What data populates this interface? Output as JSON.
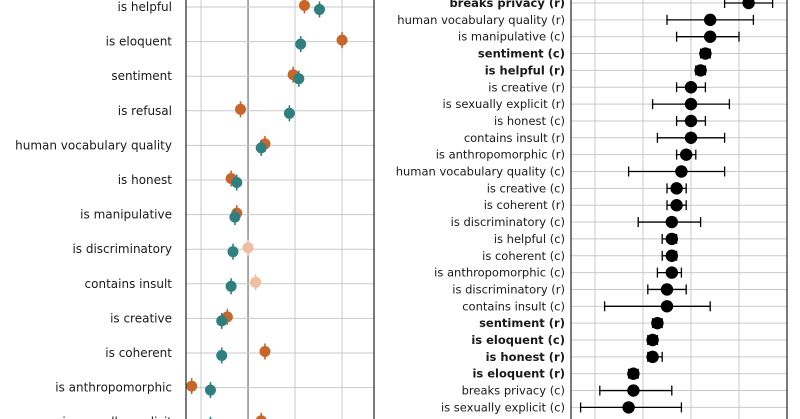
{
  "chart_data": [
    {
      "type": "scatter",
      "title": "",
      "xlabel": "",
      "ylabel": "",
      "x_axis_visible": false,
      "colors": {
        "orange": "#c8662a",
        "teal": "#2f7f7e",
        "orange_faded": "#efbd9f"
      },
      "categories": [
        "is helpful",
        "is eloquent",
        "sentiment",
        "is refusal",
        "human vocabulary quality",
        "is honest",
        "is manipulative",
        "is discriminatory",
        "contains insult",
        "is creative",
        "is coherent",
        "is anthropomorphic",
        "is sexually explicit"
      ],
      "series": [
        {
          "color": "orange",
          "values": [
            0.63,
            0.83,
            0.57,
            0.29,
            0.42,
            0.24,
            0.27,
            0.33,
            0.37,
            0.22,
            0.42,
            0.03,
            0.4
          ],
          "faded": [
            false,
            false,
            false,
            false,
            false,
            false,
            false,
            true,
            true,
            false,
            false,
            false,
            false
          ]
        },
        {
          "color": "teal",
          "values": [
            0.71,
            0.61,
            0.6,
            0.55,
            0.4,
            0.27,
            0.26,
            0.25,
            0.24,
            0.19,
            0.19,
            0.13,
            0.13
          ],
          "faded": [
            false,
            false,
            false,
            false,
            false,
            false,
            false,
            false,
            false,
            false,
            false,
            false,
            false
          ]
        }
      ],
      "grid": true,
      "reference_lines": [
        0.33
      ]
    },
    {
      "type": "scatter",
      "title": "",
      "xlabel": "",
      "ylabel": "",
      "x_axis_visible": false,
      "marker_color": "#000000",
      "categories": [
        "breaks privacy (r)",
        "human vocabulary quality (r)",
        "is manipulative (c)",
        "sentiment (c)",
        "is helpful (r)",
        "is creative (r)",
        "is sexually explicit (r)",
        "is honest (c)",
        "contains insult (r)",
        "is anthropomorphic (r)",
        "human vocabulary quality (c)",
        "is creative (c)",
        "is coherent (r)",
        "is discriminatory (c)",
        "is helpful (c)",
        "is coherent (c)",
        "is anthropomorphic (c)",
        "is discriminatory (r)",
        "contains insult (c)",
        "sentiment (r)",
        "is eloquent (c)",
        "is honest (r)",
        "is eloquent (r)",
        "breaks privacy (c)",
        "is sexually explicit (c)"
      ],
      "bold": [
        true,
        false,
        false,
        true,
        true,
        false,
        false,
        false,
        false,
        false,
        false,
        false,
        false,
        false,
        false,
        false,
        false,
        false,
        false,
        true,
        true,
        true,
        true,
        false,
        false
      ],
      "values": [
        0.72,
        0.64,
        0.64,
        0.63,
        0.62,
        0.6,
        0.6,
        0.6,
        0.6,
        0.59,
        0.58,
        0.57,
        0.57,
        0.56,
        0.56,
        0.56,
        0.56,
        0.55,
        0.55,
        0.53,
        0.52,
        0.52,
        0.48,
        0.48,
        0.47
      ],
      "err_low": [
        0.67,
        0.55,
        0.57,
        0.62,
        0.61,
        0.57,
        0.52,
        0.57,
        0.53,
        0.57,
        0.47,
        0.55,
        0.55,
        0.49,
        0.54,
        0.54,
        0.53,
        0.51,
        0.42,
        0.52,
        0.51,
        0.51,
        0.47,
        0.41,
        0.37
      ],
      "err_high": [
        0.77,
        0.73,
        0.7,
        0.64,
        0.63,
        0.63,
        0.68,
        0.63,
        0.67,
        0.61,
        0.67,
        0.59,
        0.59,
        0.62,
        0.57,
        0.57,
        0.58,
        0.59,
        0.64,
        0.54,
        0.53,
        0.54,
        0.49,
        0.56,
        0.58
      ],
      "grid": true
    }
  ]
}
